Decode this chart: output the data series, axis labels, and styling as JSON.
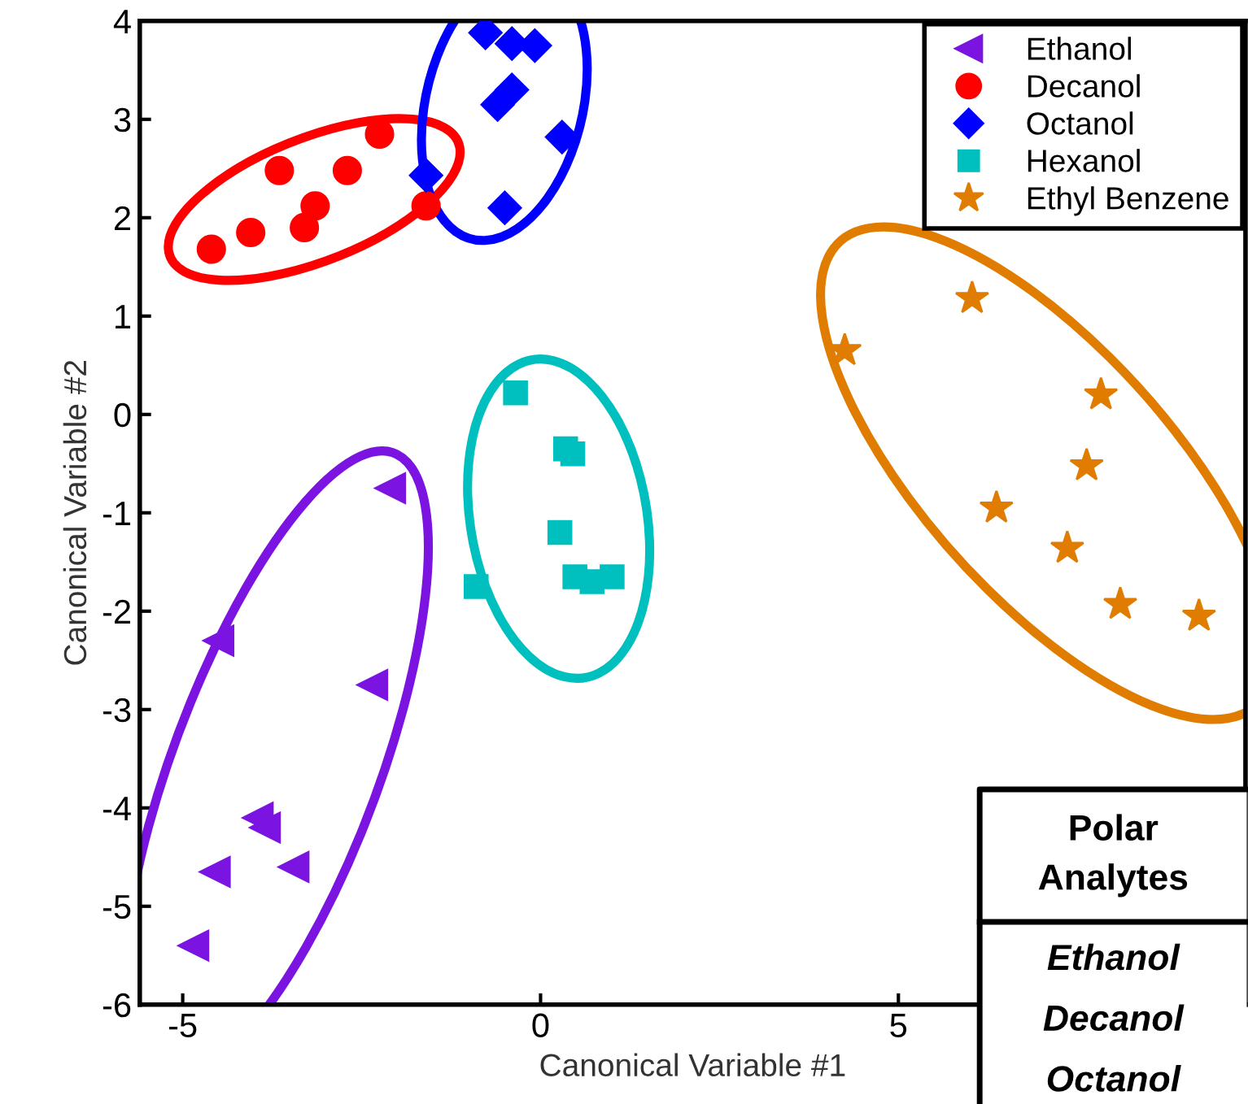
{
  "chart_data": {
    "type": "scatter",
    "xlabel": "Canonical Variable #1",
    "ylabel": "Canonical Variable #2",
    "xlim": [
      -5.6,
      9.85
    ],
    "xticks": [
      -5,
      0,
      5
    ],
    "ylim": [
      -6,
      4
    ],
    "yticks": [
      -6,
      -5,
      -4,
      -3,
      -2,
      -1,
      0,
      1,
      2,
      3,
      4
    ],
    "grid": false,
    "legend": "top right",
    "series": [
      {
        "name": "Ethanol",
        "color": "#7b14e0",
        "marker": "triangle",
        "x": [
          -2.1,
          -4.5,
          -2.35,
          -3.95,
          -3.85,
          -3.45,
          -4.55,
          -4.85
        ],
        "values": [
          -0.75,
          -2.3,
          -2.75,
          -4.1,
          -4.2,
          -4.6,
          -4.65,
          -5.4
        ]
      },
      {
        "name": "Decanol",
        "color": "#ff0000",
        "marker": "circle",
        "x": [
          -4.6,
          -4.05,
          -3.65,
          -3.15,
          -3.3,
          -2.7,
          -2.25,
          -1.6
        ],
        "values": [
          1.68,
          1.85,
          2.48,
          2.12,
          1.9,
          2.48,
          2.85,
          2.12
        ]
      },
      {
        "name": "Octanol",
        "color": "#0000ff",
        "marker": "diamond",
        "x": [
          -0.77,
          -0.4,
          -0.08,
          -0.4,
          -0.6,
          0.3,
          -1.6,
          -0.5
        ],
        "values": [
          3.88,
          3.77,
          3.75,
          3.3,
          3.15,
          2.82,
          2.43,
          2.1
        ]
      },
      {
        "name": "Hexanol",
        "color": "#00bfbf",
        "marker": "square",
        "x": [
          -0.35,
          0.35,
          0.45,
          0.27,
          0.48,
          0.72,
          1.0,
          -0.9
        ],
        "values": [
          0.22,
          -0.35,
          -0.4,
          -1.2,
          -1.65,
          -1.7,
          -1.65,
          -1.75
        ]
      },
      {
        "name": "Ethyl Benzene",
        "color": "#e07d00",
        "marker": "star",
        "x": [
          4.25,
          6.03,
          7.83,
          7.63,
          6.37,
          7.36,
          8.1,
          9.2
        ],
        "values": [
          0.65,
          1.18,
          0.2,
          -0.52,
          -0.95,
          -1.36,
          -1.93,
          -2.05
        ]
      }
    ],
    "annotations": [
      "Polar\nAnalytes",
      "Ethanol",
      "Decanol",
      "Octanol"
    ]
  }
}
